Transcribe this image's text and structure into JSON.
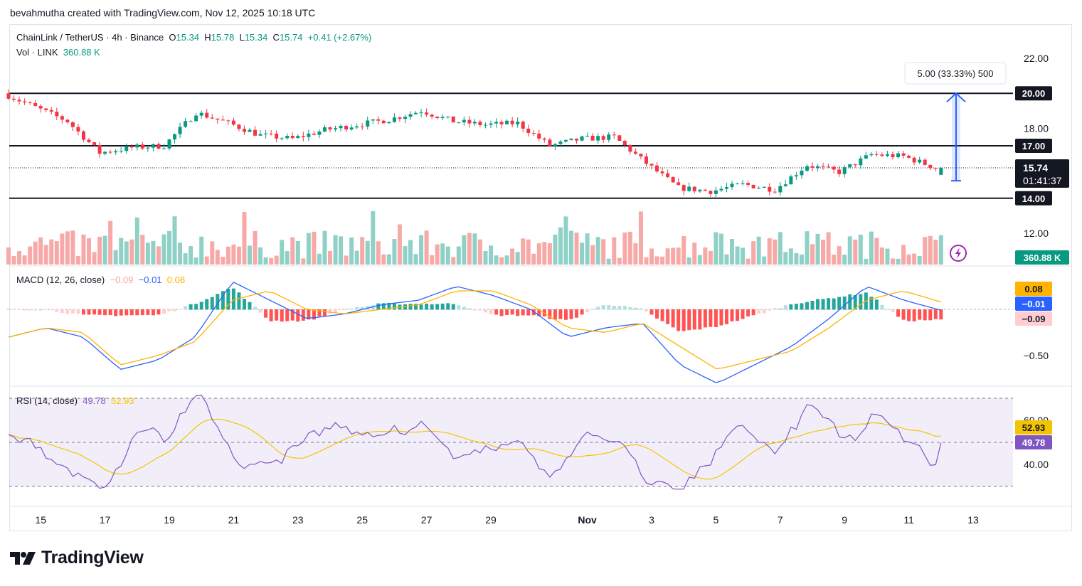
{
  "header": {
    "text": "bevahmutha created with TradingView.com, Nov 12, 2025 10:18 UTC"
  },
  "legend": {
    "symbol": "ChainLink / TetherUS · 4h · Binance",
    "o_label": "O",
    "o": "15.34",
    "h_label": "H",
    "h": "15.78",
    "l_label": "L",
    "l": "15.34",
    "c_label": "C",
    "c": "15.74",
    "change": "+0.41 (+2.67%)",
    "vol_label": "Vol · LINK",
    "vol_value": "360.88 K"
  },
  "macd_legend": {
    "label": "MACD (12, 26, close)",
    "hist": "−0.09",
    "macd": "−0.01",
    "signal": "0.08"
  },
  "rsi_legend": {
    "label": "RSI (14, close)",
    "rsi": "49.78",
    "ma": "52.93"
  },
  "measure": {
    "text": "5.00 (33.33%) 500"
  },
  "price_axis": {
    "ticks": [
      "22.00",
      "18.00",
      "12.00"
    ],
    "level_labels": [
      "20.00",
      "17.00",
      "14.00"
    ],
    "last_price": "15.74",
    "countdown": "01:41:37",
    "vol_badge": "360.88 K"
  },
  "macd_axis": {
    "tick": "−0.50",
    "signal_badge": "0.08",
    "macd_badge": "−0.01",
    "hist_badge": "−0.09"
  },
  "rsi_axis": {
    "ticks": [
      "60.00",
      "40.00"
    ],
    "ma_badge": "52.93",
    "rsi_badge": "49.78"
  },
  "time_axis": {
    "labels": [
      "15",
      "17",
      "19",
      "21",
      "23",
      "25",
      "27",
      "29",
      "Nov",
      "3",
      "5",
      "7",
      "9",
      "11",
      "13"
    ]
  },
  "brand": {
    "name": "TradingView"
  },
  "colors": {
    "up": "#089981",
    "down": "#f23645",
    "macd": "#2962ff",
    "signal": "#ffb300",
    "rsi": "#7e57c2",
    "measure": "#2962ff"
  },
  "chart_data": [
    {
      "type": "candlestick",
      "title": "ChainLink / TetherUS · 4h · Binance",
      "y_range": [
        11.3,
        22.8
      ],
      "horizontal_levels": [
        20.0,
        17.0,
        14.0
      ],
      "last_close": 15.74,
      "measure": {
        "from": 15.0,
        "to": 20.0,
        "change": 5.0,
        "percent": 33.33,
        "bars": 500
      },
      "x_range_days": [
        "Oct 14",
        "Nov 13"
      ],
      "close_path_approx": [
        {
          "date": "Oct 14",
          "close": 20.0
        },
        {
          "date": "Oct 15",
          "close": 19.2
        },
        {
          "date": "Oct 16",
          "close": 18.4
        },
        {
          "date": "Oct 17",
          "close": 16.6
        },
        {
          "date": "Oct 18",
          "close": 16.9
        },
        {
          "date": "Oct 19",
          "close": 17.0
        },
        {
          "date": "Oct 20",
          "close": 18.9
        },
        {
          "date": "Oct 21",
          "close": 18.3
        },
        {
          "date": "Oct 22",
          "close": 17.6
        },
        {
          "date": "Oct 23",
          "close": 17.4
        },
        {
          "date": "Oct 24",
          "close": 17.9
        },
        {
          "date": "Oct 25",
          "close": 18.2
        },
        {
          "date": "Oct 26",
          "close": 18.5
        },
        {
          "date": "Oct 27",
          "close": 19.0
        },
        {
          "date": "Oct 28",
          "close": 18.4
        },
        {
          "date": "Oct 29",
          "close": 18.2
        },
        {
          "date": "Oct 30",
          "close": 18.3
        },
        {
          "date": "Oct 31",
          "close": 17.0
        },
        {
          "date": "Nov 1",
          "close": 17.4
        },
        {
          "date": "Nov 2",
          "close": 17.5
        },
        {
          "date": "Nov 3",
          "close": 16.0
        },
        {
          "date": "Nov 4",
          "close": 14.6
        },
        {
          "date": "Nov 5",
          "close": 14.4
        },
        {
          "date": "Nov 6",
          "close": 14.8
        },
        {
          "date": "Nov 7",
          "close": 14.5
        },
        {
          "date": "Nov 8",
          "close": 15.9
        },
        {
          "date": "Nov 9",
          "close": 15.5
        },
        {
          "date": "Nov 10",
          "close": 16.5
        },
        {
          "date": "Nov 11",
          "close": 16.4
        },
        {
          "date": "Nov 12",
          "close": 15.74
        }
      ]
    },
    {
      "type": "bar",
      "title": "Vol · LINK",
      "last_value": "360.88 K"
    },
    {
      "type": "line",
      "title": "MACD (12, 26, close)",
      "y_ticks": [
        -0.5
      ],
      "last": {
        "histogram": -0.09,
        "macd": -0.01,
        "signal": 0.08
      },
      "series": [
        {
          "name": "MACD",
          "values": [
            -0.3,
            -0.2,
            -0.3,
            -0.65,
            -0.55,
            -0.3,
            0.3,
            0.1,
            -0.1,
            -0.05,
            0.05,
            0.1,
            0.25,
            0.15,
            0.0,
            -0.3,
            -0.2,
            -0.15,
            -0.6,
            -0.8,
            -0.6,
            -0.4,
            -0.1,
            0.25,
            0.1,
            -0.01
          ]
        },
        {
          "name": "Signal",
          "values": [
            -0.3,
            -0.2,
            -0.25,
            -0.6,
            -0.5,
            -0.35,
            0.1,
            0.2,
            0.0,
            -0.05,
            0.0,
            0.05,
            0.2,
            0.2,
            0.05,
            -0.2,
            -0.25,
            -0.15,
            -0.4,
            -0.65,
            -0.55,
            -0.45,
            -0.2,
            0.1,
            0.2,
            0.08
          ]
        }
      ]
    },
    {
      "type": "line",
      "title": "RSI (14, close)",
      "y_ticks": [
        60,
        40
      ],
      "band": [
        70,
        30
      ],
      "last": {
        "rsi": 49.78,
        "ma": 52.93
      }
    }
  ]
}
